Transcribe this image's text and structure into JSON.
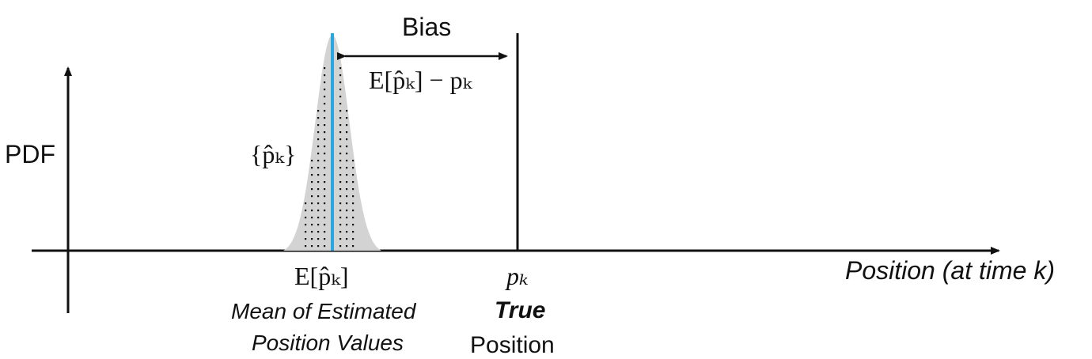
{
  "axes": {
    "y_label": "PDF",
    "x_label": "Position (at time k)"
  },
  "distribution": {
    "set_label": "{p̂ₖ}",
    "fill_color": "#d3d3d3",
    "mean_line_color": "#29a8e0"
  },
  "mean": {
    "symbol": "E[p̂ₖ]",
    "caption_line1": "Mean of Estimated",
    "caption_line2": "Position Values"
  },
  "true_position": {
    "symbol": "pₖ",
    "caption_bold": "True",
    "caption": "Position"
  },
  "bias": {
    "label": "Bias",
    "formula": "E[p̂ₖ] − pₖ"
  }
}
